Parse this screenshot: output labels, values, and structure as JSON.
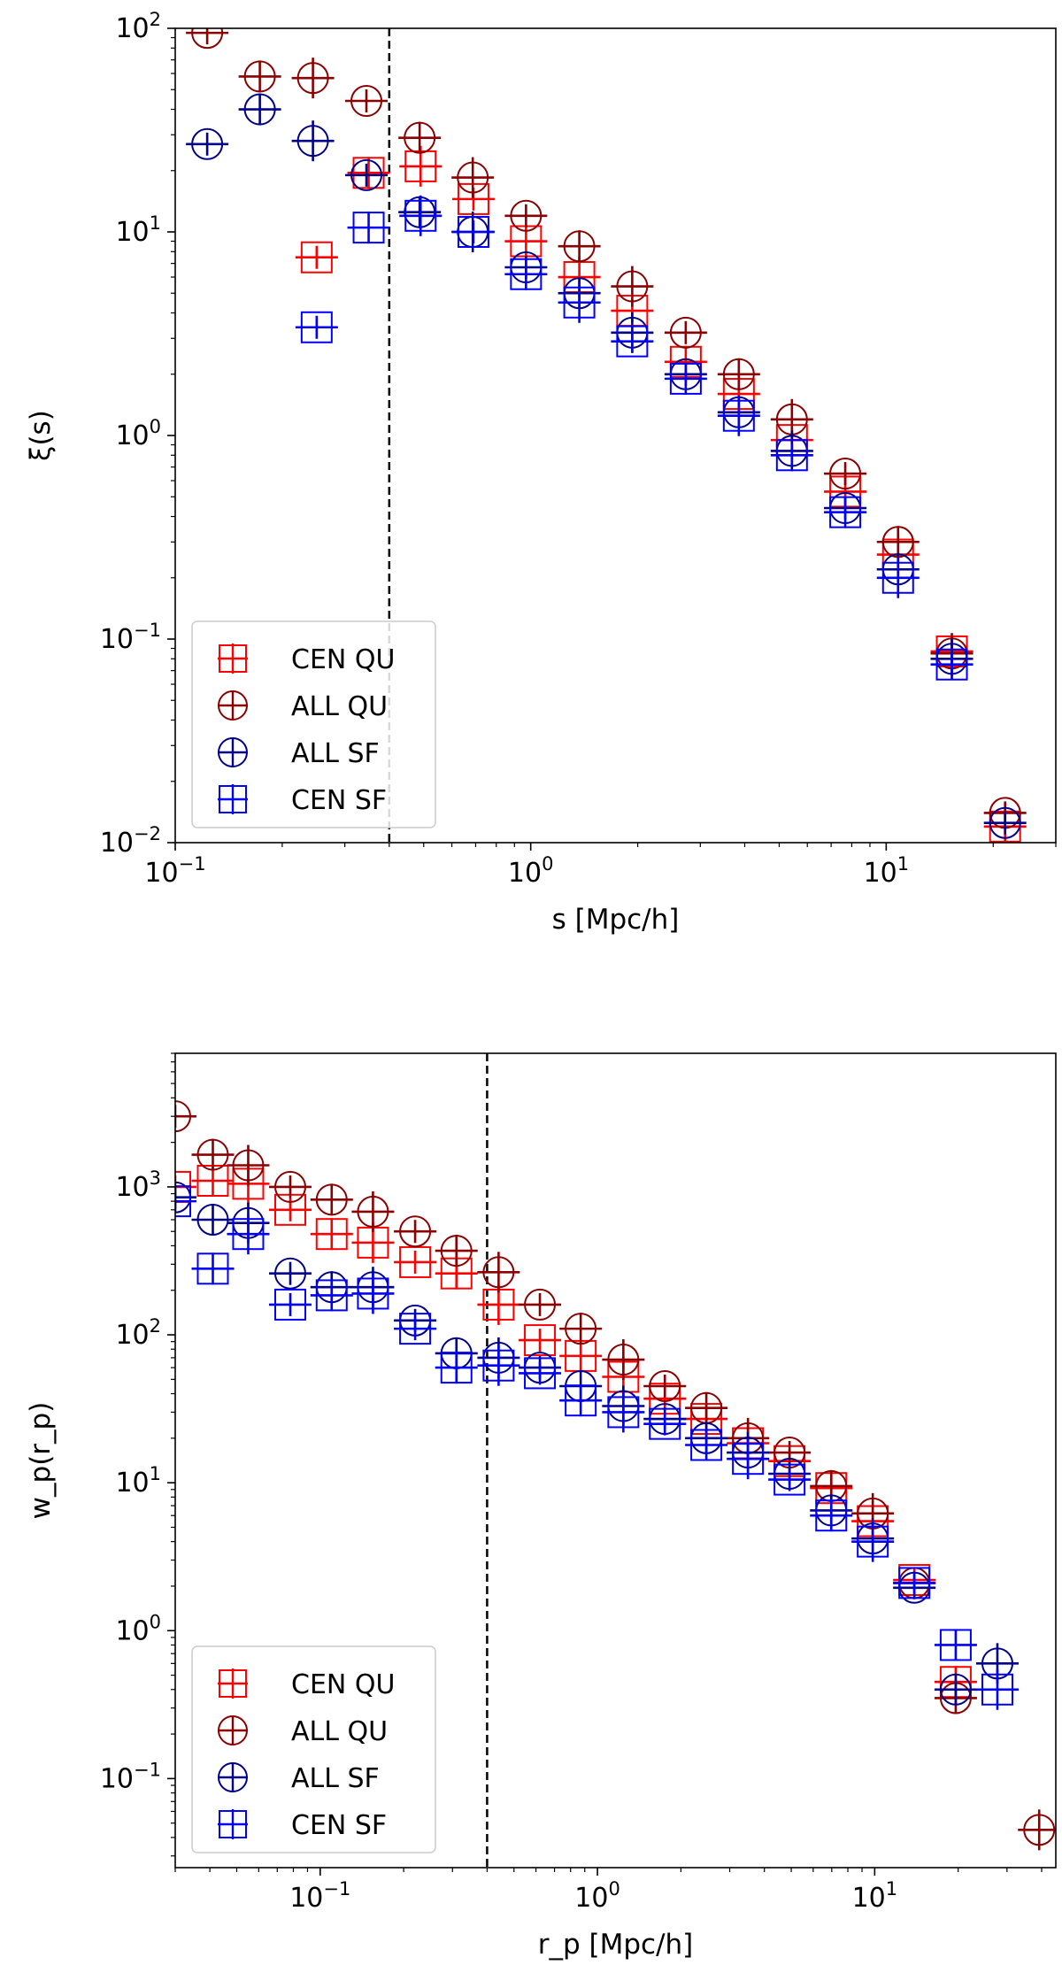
{
  "chart_data": [
    {
      "type": "scatter",
      "xscale": "log",
      "yscale": "log",
      "xlim": [
        0.1,
        30
      ],
      "ylim": [
        0.01,
        100
      ],
      "xlabel": "s [Mpc/h]",
      "ylabel": "ξ(s)",
      "xticks": [
        {
          "value": 0.1,
          "base": "10",
          "exp": "−1"
        },
        {
          "value": 1,
          "base": "10",
          "exp": "0"
        },
        {
          "value": 10,
          "base": "10",
          "exp": "1"
        }
      ],
      "yticks": [
        {
          "value": 0.01,
          "base": "10",
          "exp": "−2"
        },
        {
          "value": 0.1,
          "base": "10",
          "exp": "−1"
        },
        {
          "value": 1,
          "base": "10",
          "exp": "0"
        },
        {
          "value": 10,
          "base": "10",
          "exp": "1"
        },
        {
          "value": 100,
          "base": "10",
          "exp": "2"
        }
      ],
      "vline": 0.4,
      "legend": {
        "position": "lower-left",
        "entries": [
          "CEN QU",
          "ALL QU",
          "ALL SF",
          "CEN SF"
        ]
      },
      "series": [
        {
          "name": "CEN QU",
          "marker": "square",
          "color": "#ff0000",
          "x": [
            0.25,
            0.35,
            0.49,
            0.69,
            0.97,
            1.37,
            1.93,
            2.73,
            3.85,
            5.43,
            7.67,
            10.8,
            15.3,
            21.6
          ],
          "y": [
            7.5,
            19.5,
            21,
            14.5,
            9,
            6,
            4.1,
            2.3,
            1.6,
            0.95,
            0.53,
            0.26,
            0.087,
            0.012
          ]
        },
        {
          "name": "ALL QU",
          "marker": "circle",
          "color": "#8b0000",
          "x": [
            0.123,
            0.173,
            0.244,
            0.345,
            0.487,
            0.687,
            0.97,
            1.37,
            1.93,
            2.73,
            3.85,
            5.43,
            7.67,
            10.8,
            15.3,
            21.6
          ],
          "y": [
            95,
            58,
            57,
            44,
            29,
            18.5,
            12,
            8.5,
            5.4,
            3.2,
            2.0,
            1.2,
            0.65,
            0.3,
            0.085,
            0.014
          ]
        },
        {
          "name": "ALL SF",
          "marker": "circle",
          "color": "#00008b",
          "x": [
            0.123,
            0.173,
            0.244,
            0.345,
            0.487,
            0.687,
            0.97,
            1.37,
            1.93,
            2.73,
            3.85,
            5.43,
            7.67,
            10.8,
            15.3,
            21.6
          ],
          "y": [
            27,
            40,
            28,
            19,
            12.5,
            10,
            6.7,
            5.0,
            3.2,
            2.0,
            1.3,
            0.84,
            0.44,
            0.22,
            0.08,
            0.0125
          ]
        },
        {
          "name": "CEN SF",
          "marker": "square",
          "color": "#0000ff",
          "x": [
            0.25,
            0.35,
            0.49,
            0.69,
            0.97,
            1.37,
            1.93,
            2.73,
            3.85,
            5.43,
            7.67,
            10.8,
            15.3
          ],
          "y": [
            3.4,
            10.5,
            12,
            10,
            6.2,
            4.5,
            2.9,
            1.9,
            1.25,
            0.8,
            0.42,
            0.2,
            0.075
          ]
        }
      ]
    },
    {
      "type": "scatter",
      "xscale": "log",
      "yscale": "log",
      "xlim": [
        0.03,
        45
      ],
      "ylim": [
        0.025,
        8000
      ],
      "xlabel": "r_p [Mpc/h]",
      "ylabel": "w_p(r_p)",
      "xticks": [
        {
          "value": 0.1,
          "base": "10",
          "exp": "−1"
        },
        {
          "value": 1,
          "base": "10",
          "exp": "0"
        },
        {
          "value": 10,
          "base": "10",
          "exp": "1"
        }
      ],
      "yticks": [
        {
          "value": 0.1,
          "base": "10",
          "exp": "−1"
        },
        {
          "value": 1,
          "base": "10",
          "exp": "0"
        },
        {
          "value": 10,
          "base": "10",
          "exp": "1"
        },
        {
          "value": 100,
          "base": "10",
          "exp": "2"
        },
        {
          "value": 1000,
          "base": "10",
          "exp": "3"
        }
      ],
      "vline": 0.4,
      "legend": {
        "position": "lower-left",
        "entries": [
          "CEN QU",
          "ALL QU",
          "ALL SF",
          "CEN SF"
        ]
      },
      "series": [
        {
          "name": "CEN QU",
          "marker": "square",
          "color": "#ff0000",
          "x": [
            0.03,
            0.041,
            0.055,
            0.078,
            0.11,
            0.155,
            0.22,
            0.31,
            0.44,
            0.62,
            0.87,
            1.24,
            1.75,
            2.47,
            3.49,
            4.93,
            6.97,
            9.84,
            13.9,
            19.6
          ],
          "y": [
            1000,
            1100,
            1050,
            700,
            480,
            420,
            310,
            260,
            160,
            92,
            72,
            52,
            37,
            27,
            18.5,
            14,
            9.2,
            5.5,
            2.2,
            0.45
          ]
        },
        {
          "name": "ALL QU",
          "marker": "circle",
          "color": "#8b0000",
          "x": [
            0.03,
            0.041,
            0.055,
            0.078,
            0.11,
            0.155,
            0.22,
            0.31,
            0.44,
            0.62,
            0.87,
            1.24,
            1.75,
            2.47,
            3.49,
            4.93,
            6.97,
            9.84,
            13.9,
            19.6,
            39.2
          ],
          "y": [
            3000,
            1650,
            1400,
            1000,
            820,
            680,
            500,
            370,
            265,
            160,
            110,
            68,
            45,
            32,
            20,
            16,
            9.5,
            6.2,
            2.1,
            0.35,
            0.045
          ]
        },
        {
          "name": "ALL SF",
          "marker": "circle",
          "color": "#00008b",
          "x": [
            0.03,
            0.041,
            0.055,
            0.078,
            0.11,
            0.155,
            0.22,
            0.31,
            0.44,
            0.62,
            0.87,
            1.24,
            1.75,
            2.47,
            3.49,
            4.93,
            6.97,
            9.84,
            13.9,
            19.6,
            27.7
          ],
          "y": [
            850,
            600,
            570,
            260,
            210,
            210,
            125,
            75,
            70,
            60,
            45,
            33,
            27,
            20,
            16,
            11.5,
            6.5,
            4.2,
            1.95,
            0.4,
            0.6
          ]
        },
        {
          "name": "CEN SF",
          "marker": "square",
          "color": "#0000ff",
          "x": [
            0.03,
            0.041,
            0.055,
            0.078,
            0.11,
            0.155,
            0.22,
            0.31,
            0.44,
            0.62,
            0.87,
            1.24,
            1.75,
            2.47,
            3.49,
            4.93,
            6.97,
            9.84,
            13.9,
            19.6,
            27.7
          ],
          "y": [
            800,
            280,
            480,
            160,
            185,
            190,
            110,
            60,
            62,
            55,
            36,
            30,
            25,
            18,
            14.5,
            10.5,
            6,
            4.0,
            2.1,
            0.8,
            0.4
          ]
        }
      ]
    }
  ]
}
